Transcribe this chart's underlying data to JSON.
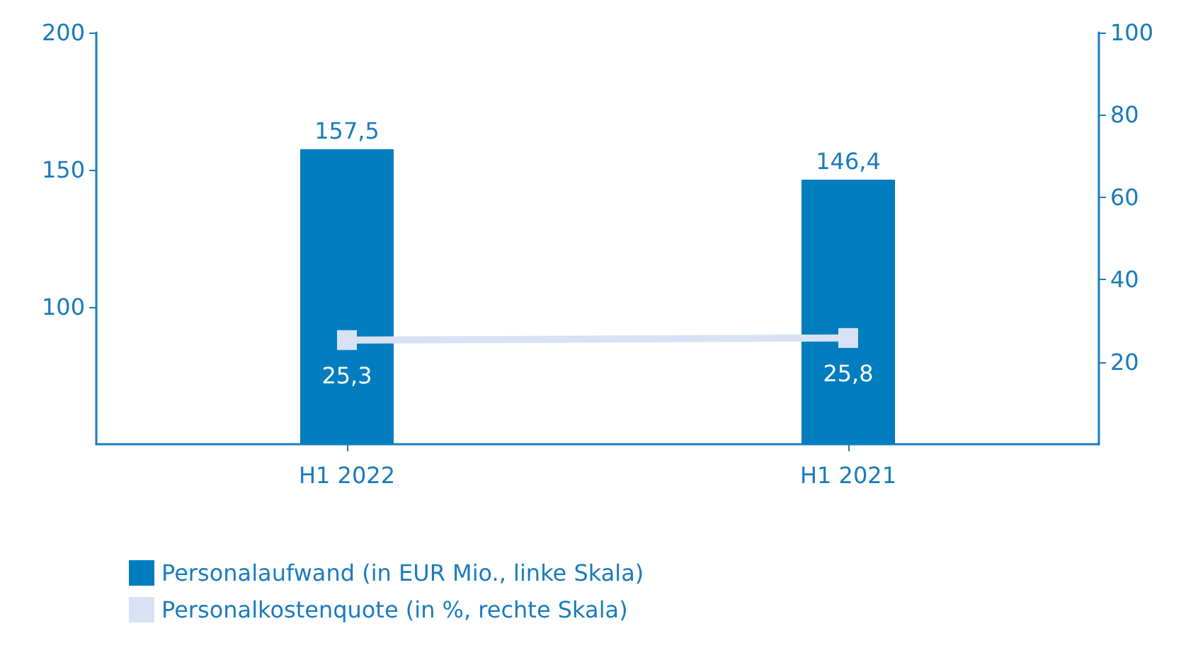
{
  "chart_data": {
    "type": "bar",
    "categories": [
      "H1 2022",
      "H1 2021"
    ],
    "series": [
      {
        "name": "Personalaufwand (in EUR Mio., linke Skala)",
        "color": "#007dbf",
        "values": [
          157.5,
          146.4
        ],
        "value_labels": [
          "157,5",
          "146,4"
        ]
      },
      {
        "name": "Personalkostenquote (in %, rechte Skala)",
        "type": "line",
        "axis": "y2",
        "color": "#d8e2f4",
        "values": [
          25.3,
          25.8
        ],
        "value_labels": [
          "25,3",
          "25,8"
        ],
        "marker": "square"
      }
    ],
    "ylim": [
      50,
      200
    ],
    "yticks": [
      100,
      150,
      200
    ],
    "y2lim": [
      0,
      100
    ],
    "y2ticks": [
      20,
      40,
      60,
      80,
      100
    ],
    "grid": false,
    "legend": "bottom left"
  }
}
